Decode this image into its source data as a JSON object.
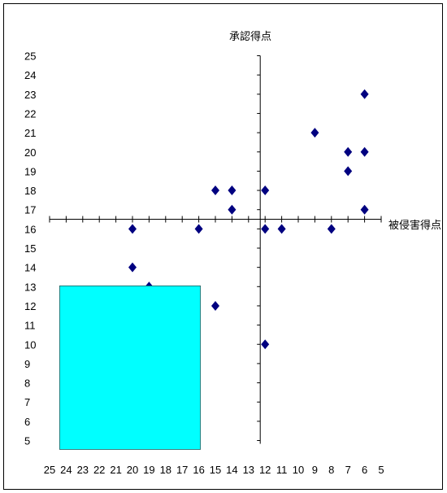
{
  "chart_data": {
    "type": "scatter",
    "xlabel": "被侵害得点",
    "ylabel": "承認得点",
    "x_reversed": true,
    "xlim": [
      5,
      25
    ],
    "ylim": [
      5,
      25
    ],
    "x_ticks": [
      25,
      24,
      23,
      22,
      21,
      20,
      19,
      18,
      17,
      16,
      15,
      14,
      13,
      12,
      11,
      10,
      9,
      8,
      7,
      6,
      5
    ],
    "y_ticks": [
      25,
      24,
      23,
      22,
      21,
      20,
      19,
      18,
      17,
      16,
      15,
      14,
      13,
      12,
      11,
      10,
      9,
      8,
      7,
      6,
      5
    ],
    "axes_cross": {
      "x": 12,
      "y": 16.5
    },
    "grid": false,
    "marker": "diamond",
    "marker_color": "#000080",
    "highlight_color": "#00FFFF",
    "highlight_region": {
      "x": [
        24,
        16
      ],
      "y": [
        5,
        13
      ]
    },
    "points": [
      {
        "x": 6,
        "y": 23
      },
      {
        "x": 9,
        "y": 21
      },
      {
        "x": 7,
        "y": 20
      },
      {
        "x": 6,
        "y": 20
      },
      {
        "x": 7,
        "y": 19
      },
      {
        "x": 15,
        "y": 18
      },
      {
        "x": 14,
        "y": 18
      },
      {
        "x": 12,
        "y": 18
      },
      {
        "x": 14,
        "y": 17
      },
      {
        "x": 6,
        "y": 17
      },
      {
        "x": 20,
        "y": 16
      },
      {
        "x": 16,
        "y": 16
      },
      {
        "x": 12,
        "y": 16
      },
      {
        "x": 11,
        "y": 16
      },
      {
        "x": 8,
        "y": 16
      },
      {
        "x": 20,
        "y": 14
      },
      {
        "x": 19,
        "y": 13
      },
      {
        "x": 15,
        "y": 12
      },
      {
        "x": 12,
        "y": 10
      }
    ]
  }
}
